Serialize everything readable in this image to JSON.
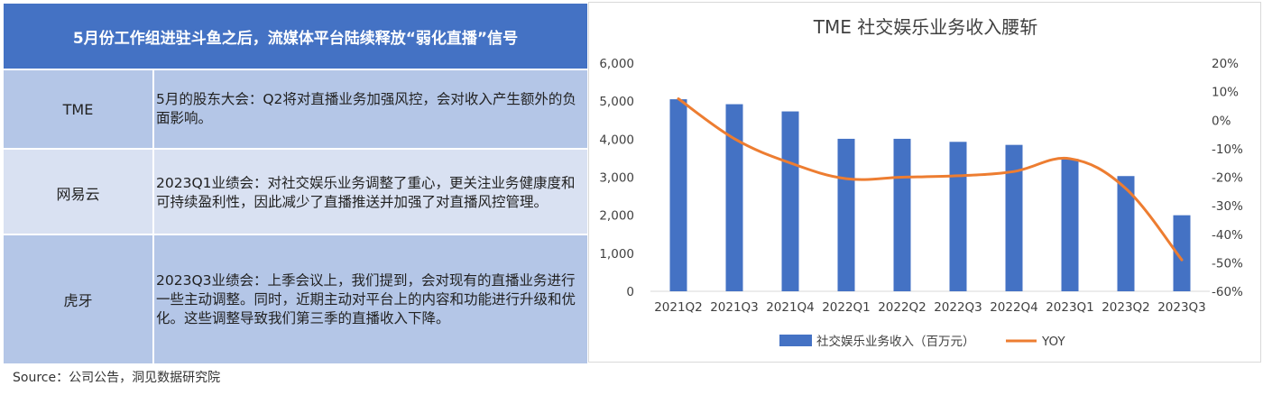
{
  "table": {
    "header": "5月份工作组进驻斗鱼之后，流媒体平台陆续释放“弱化直播”信号",
    "rows": [
      {
        "name": "TME",
        "text": "5月的股东大会：Q2将对直播业务加强风控，会对收入产生额外的负面影响。"
      },
      {
        "name": "网易云",
        "text": "2023Q1业绩会：对社交娱乐业务调整了重心，更关注业务健康度和可持续盈利性，因此减少了直播推送并加强了对直播风控管理。"
      },
      {
        "name": "虎牙",
        "text": "2023Q3业绩会：上季会议上，我们提到，会对现有的直播业务进行一些主动调整。同时，近期主动对平台上的内容和功能进行升级和优化。这些调整导致我们第三季的直播收入下降。"
      }
    ]
  },
  "source": "Source：公司公告，洞见数据研究院",
  "chart_data": {
    "type": "bar",
    "title": "TME 社交娱乐业务收入腰斩",
    "categories": [
      "2021Q2",
      "2021Q3",
      "2021Q4",
      "2022Q1",
      "2022Q2",
      "2022Q3",
      "2022Q4",
      "2023Q1",
      "2023Q2",
      "2023Q3"
    ],
    "series": [
      {
        "name": "社交娱乐业务收入（百万元）",
        "type": "bar",
        "axis": "left",
        "color": "#4472c4",
        "values": [
          5050,
          4920,
          4730,
          4010,
          4010,
          3930,
          3850,
          3480,
          3030,
          2000
        ]
      },
      {
        "name": "YOY",
        "type": "line",
        "axis": "right",
        "color": "#ed7d31",
        "values": [
          7.5,
          -6.5,
          -15,
          -20.5,
          -20,
          -19.5,
          -18,
          -13.5,
          -24,
          -49
        ]
      }
    ],
    "ylim_left": [
      0,
      6000
    ],
    "yticks_left": [
      "0",
      "1,000",
      "2,000",
      "3,000",
      "4,000",
      "5,000",
      "6,000"
    ],
    "ylim_right": [
      -60,
      20
    ],
    "yticks_right": [
      "-60%",
      "-50%",
      "-40%",
      "-30%",
      "-20%",
      "-10%",
      "0%",
      "10%",
      "20%"
    ],
    "legend_position": "bottom",
    "grid": false
  }
}
